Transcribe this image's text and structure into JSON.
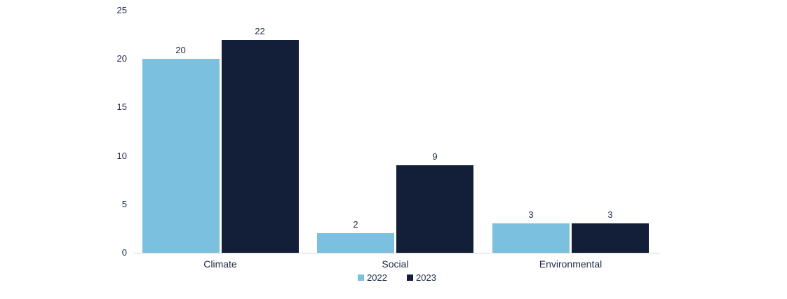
{
  "chart_data": {
    "type": "bar",
    "title": "",
    "xlabel": "",
    "ylabel": "",
    "categories": [
      "Climate",
      "Social",
      "Environmental"
    ],
    "series": [
      {
        "name": "2022",
        "color": "#7CC0E0",
        "values": [
          20,
          2,
          3
        ]
      },
      {
        "name": "2023",
        "color": "#131E38",
        "values": [
          22,
          9,
          3
        ]
      }
    ],
    "yticks": [
      0,
      5,
      10,
      15,
      20,
      25
    ],
    "ylim": [
      0,
      25
    ],
    "grid": false,
    "legend_position": "bottom",
    "value_labels_shown": true,
    "axis_line_color": "#d9d9d9",
    "text_color": "#1f2a47"
  }
}
